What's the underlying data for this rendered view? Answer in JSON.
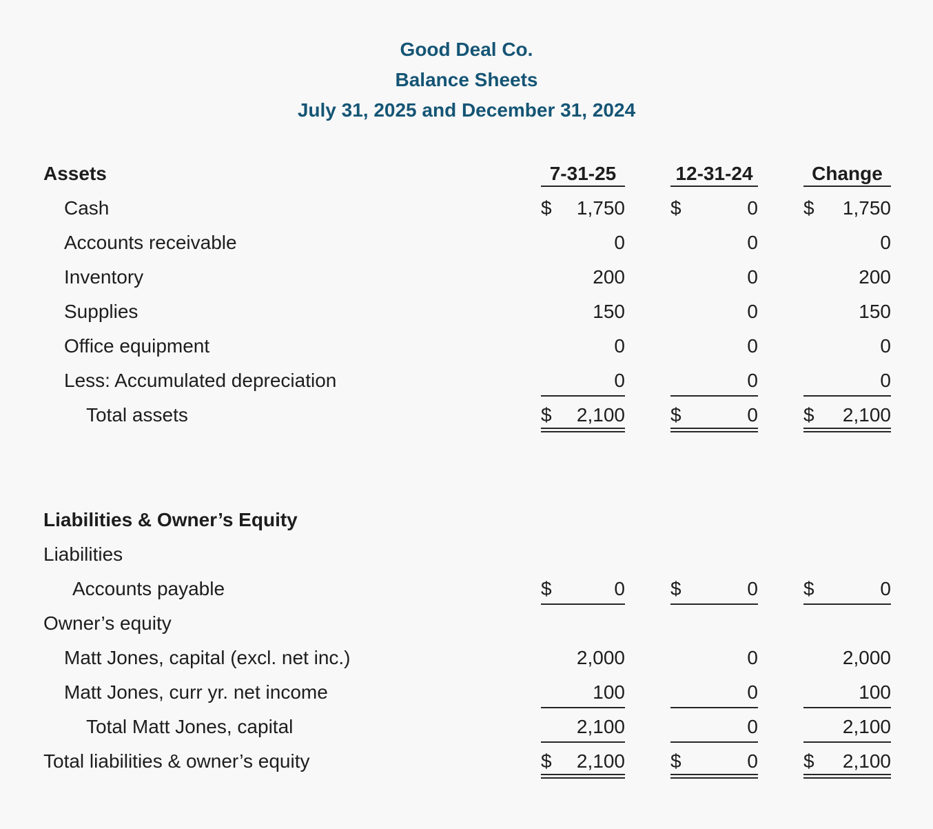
{
  "page": {
    "colors": {
      "accent": "#155575",
      "background": "#f8f8f8",
      "text": "#1d1d1d",
      "line": "#262626"
    }
  },
  "header": {
    "company": "Good Deal Co.",
    "report_title": "Balance Sheets",
    "period": "July 31, 2025 and December 31, 2024"
  },
  "columns": [
    "7-31-25",
    "12-31-24",
    "Change"
  ],
  "sections": [
    {
      "name": "assets",
      "rows": [
        {
          "type": "colhead",
          "label": "Assets",
          "bold": true,
          "indent": 0,
          "rule": "single"
        },
        {
          "label": "Cash",
          "indent": 1,
          "cells": [
            {
              "d": "$",
              "v": "1,750"
            },
            {
              "d": "$",
              "v": "0"
            },
            {
              "d": "$",
              "v": "1,750"
            }
          ]
        },
        {
          "label": "Accounts receivable",
          "indent": 1,
          "cells": [
            {
              "d": "",
              "v": "0"
            },
            {
              "d": "",
              "v": "0"
            },
            {
              "d": "",
              "v": "0"
            }
          ]
        },
        {
          "label": "Inventory",
          "indent": 1,
          "cells": [
            {
              "d": "",
              "v": "200"
            },
            {
              "d": "",
              "v": "0"
            },
            {
              "d": "",
              "v": "200"
            }
          ]
        },
        {
          "label": "Supplies",
          "indent": 1,
          "cells": [
            {
              "d": "",
              "v": "150"
            },
            {
              "d": "",
              "v": "0"
            },
            {
              "d": "",
              "v": "150"
            }
          ]
        },
        {
          "label": "Office equipment",
          "indent": 1,
          "cells": [
            {
              "d": "",
              "v": "0"
            },
            {
              "d": "",
              "v": "0"
            },
            {
              "d": "",
              "v": "0"
            }
          ]
        },
        {
          "label": "Less: Accumulated depreciation",
          "indent": 1,
          "rule": "single",
          "cells": [
            {
              "d": "",
              "v": "0"
            },
            {
              "d": "",
              "v": "0"
            },
            {
              "d": "",
              "v": "0"
            }
          ]
        },
        {
          "label": "Total assets",
          "indent": 3,
          "rule": "double",
          "cells": [
            {
              "d": "$",
              "v": "2,100"
            },
            {
              "d": "$",
              "v": "0"
            },
            {
              "d": "$",
              "v": "2,100"
            }
          ]
        }
      ]
    },
    {
      "name": "liabilities-owners-equity",
      "rows": [
        {
          "label": "Liabilities & Owner’s Equity",
          "bold": true,
          "indent": 0
        },
        {
          "label": "Liabilities",
          "indent": 0
        },
        {
          "label": "Accounts payable",
          "indent": 2,
          "rule": "single",
          "cells": [
            {
              "d": "$",
              "v": "0"
            },
            {
              "d": "$",
              "v": "0"
            },
            {
              "d": "$",
              "v": "0"
            }
          ]
        },
        {
          "label": "Owner’s equity",
          "indent": 0
        },
        {
          "label": "Matt Jones, capital (excl. net inc.)",
          "indent": 1,
          "cells": [
            {
              "d": "",
              "v": "2,000"
            },
            {
              "d": "",
              "v": "0"
            },
            {
              "d": "",
              "v": "2,000"
            }
          ]
        },
        {
          "label": "Matt Jones, curr yr. net income",
          "indent": 1,
          "rule": "single",
          "cells": [
            {
              "d": "",
              "v": "100"
            },
            {
              "d": "",
              "v": "0"
            },
            {
              "d": "",
              "v": "100"
            }
          ]
        },
        {
          "label": "Total Matt Jones, capital",
          "indent": 3,
          "rule": "single",
          "cells": [
            {
              "d": "",
              "v": "2,100"
            },
            {
              "d": "",
              "v": "0"
            },
            {
              "d": "",
              "v": "2,100"
            }
          ]
        },
        {
          "label": "Total liabilities & owner’s equity",
          "indent": 0,
          "rule": "double",
          "cells": [
            {
              "d": "$",
              "v": "2,100"
            },
            {
              "d": "$",
              "v": "0"
            },
            {
              "d": "$",
              "v": "2,100"
            }
          ]
        }
      ]
    }
  ]
}
